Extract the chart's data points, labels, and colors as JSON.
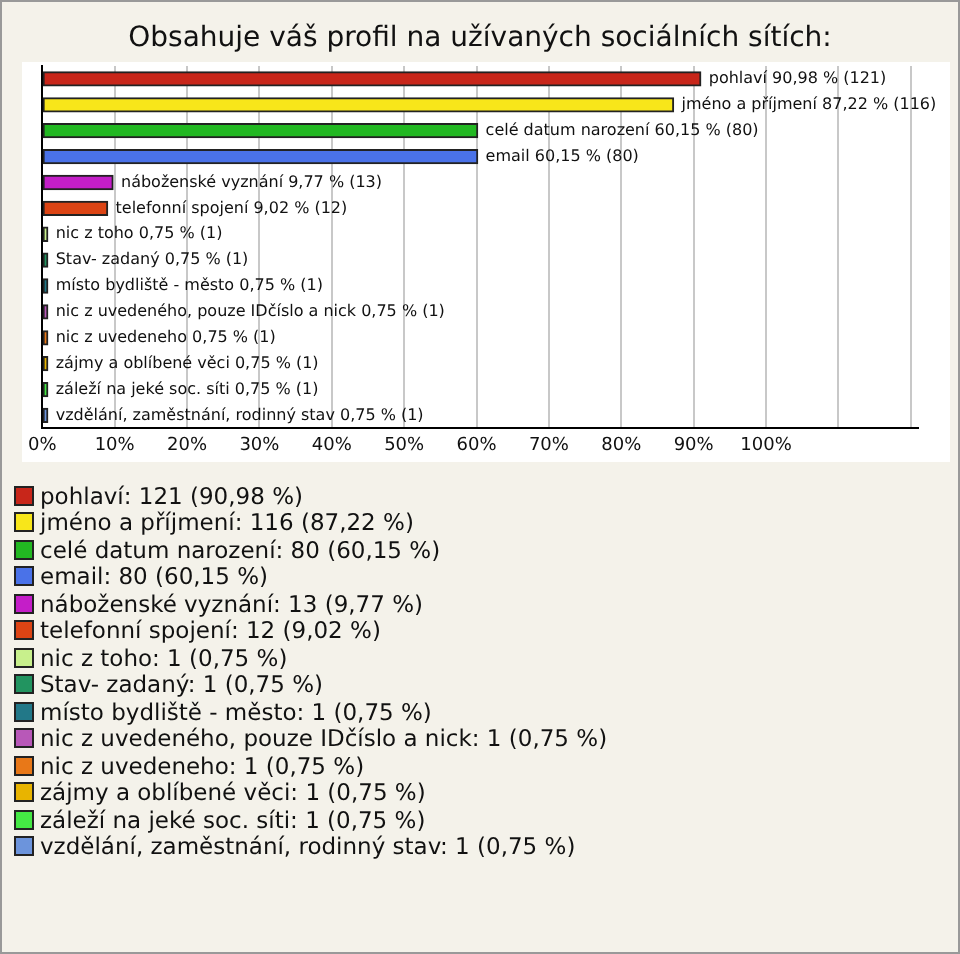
{
  "chart_data": {
    "type": "bar",
    "orientation": "horizontal",
    "stacked": true,
    "title": "Obsahuje váš profil na užívaných sociálních sítích:",
    "categories": [
      null,
      null,
      null,
      null,
      null,
      null,
      null,
      null,
      null,
      null,
      null,
      null,
      null,
      null
    ],
    "series": [
      {
        "name": "pohlaví: 121 (90,98 %)",
        "color": "#c8261a",
        "values": [
          90.98,
          null,
          null,
          null,
          null,
          null,
          null,
          null,
          null,
          null,
          null,
          null,
          null,
          null
        ],
        "value_labels": [
          "pohlaví 90,98 % (121)",
          null,
          null,
          null,
          null,
          null,
          null,
          null,
          null,
          null,
          null,
          null,
          null,
          null
        ]
      },
      {
        "name": "jméno a příjmení: 116 (87,22 %)",
        "color": "#f8e61a",
        "values": [
          null,
          87.22,
          null,
          null,
          null,
          null,
          null,
          null,
          null,
          null,
          null,
          null,
          null,
          null
        ],
        "value_labels": [
          null,
          "jméno a příjmení 87,22 % (116)",
          null,
          null,
          null,
          null,
          null,
          null,
          null,
          null,
          null,
          null,
          null,
          null
        ]
      },
      {
        "name": "celé datum narození: 80 (60,15 %)",
        "color": "#22b822",
        "values": [
          null,
          null,
          60.15,
          null,
          null,
          null,
          null,
          null,
          null,
          null,
          null,
          null,
          null,
          null
        ],
        "value_labels": [
          null,
          null,
          "celé datum narození 60,15 % (80)",
          null,
          null,
          null,
          null,
          null,
          null,
          null,
          null,
          null,
          null,
          null
        ]
      },
      {
        "name": "email: 80 (60,15 %)",
        "color": "#4a72e8",
        "values": [
          null,
          null,
          null,
          60.15,
          null,
          null,
          null,
          null,
          null,
          null,
          null,
          null,
          null,
          null
        ],
        "value_labels": [
          null,
          null,
          null,
          "email 60,15 % (80)",
          null,
          null,
          null,
          null,
          null,
          null,
          null,
          null,
          null,
          null
        ]
      },
      {
        "name": "náboženské vyznání: 13 (9,77 %)",
        "color": "#c41ec8",
        "values": [
          null,
          null,
          null,
          null,
          9.77,
          null,
          null,
          null,
          null,
          null,
          null,
          null,
          null,
          null
        ],
        "value_labels": [
          null,
          null,
          null,
          null,
          "náboženské vyznání 9,77 % (13)",
          null,
          null,
          null,
          null,
          null,
          null,
          null,
          null,
          null
        ]
      },
      {
        "name": "telefonní spojení: 12 (9,02 %)",
        "color": "#dc4414",
        "values": [
          null,
          null,
          null,
          null,
          null,
          9.02,
          null,
          null,
          null,
          null,
          null,
          null,
          null,
          null
        ],
        "value_labels": [
          null,
          null,
          null,
          null,
          null,
          "telefonní spojení 9,02 % (12)",
          null,
          null,
          null,
          null,
          null,
          null,
          null,
          null
        ]
      },
      {
        "name": "nic z toho: 1 (0,75 %)",
        "color": "#c8f08c",
        "values": [
          null,
          null,
          null,
          null,
          null,
          null,
          0.75,
          null,
          null,
          null,
          null,
          null,
          null,
          null
        ],
        "value_labels": [
          null,
          null,
          null,
          null,
          null,
          null,
          "nic z toho 0,75 % (1)",
          null,
          null,
          null,
          null,
          null,
          null,
          null
        ]
      },
      {
        "name": "Stav- zadaný: 1 (0,75 %)",
        "color": "#229460",
        "values": [
          null,
          null,
          null,
          null,
          null,
          null,
          null,
          0.75,
          null,
          null,
          null,
          null,
          null,
          null
        ],
        "value_labels": [
          null,
          null,
          null,
          null,
          null,
          null,
          null,
          "Stav- zadaný 0,75 % (1)",
          null,
          null,
          null,
          null,
          null,
          null
        ]
      },
      {
        "name": "místo bydliště - město: 1 (0,75 %)",
        "color": "#227888",
        "values": [
          null,
          null,
          null,
          null,
          null,
          null,
          null,
          null,
          0.75,
          null,
          null,
          null,
          null,
          null
        ],
        "value_labels": [
          null,
          null,
          null,
          null,
          null,
          null,
          null,
          null,
          "místo bydliště - město 0,75 % (1)",
          null,
          null,
          null,
          null,
          null
        ]
      },
      {
        "name": "nic z uvedeného, pouze IDčíslo a nick: 1 (0,75 %)",
        "color": "#b858b8",
        "values": [
          null,
          null,
          null,
          null,
          null,
          null,
          null,
          null,
          null,
          0.75,
          null,
          null,
          null,
          null
        ],
        "value_labels": [
          null,
          null,
          null,
          null,
          null,
          null,
          null,
          null,
          null,
          "nic z uvedeného, pouze IDčíslo a nick 0,75 % (1)",
          null,
          null,
          null,
          null
        ]
      },
      {
        "name": "nic z uvedeneho: 1 (0,75 %)",
        "color": "#e87818",
        "values": [
          null,
          null,
          null,
          null,
          null,
          null,
          null,
          null,
          null,
          null,
          0.75,
          null,
          null,
          null
        ],
        "value_labels": [
          null,
          null,
          null,
          null,
          null,
          null,
          null,
          null,
          null,
          null,
          "nic z uvedeneho 0,75 % (1)",
          null,
          null,
          null
        ]
      },
      {
        "name": "zájmy a oblíbené věci: 1 (0,75 %)",
        "color": "#e8b400",
        "values": [
          null,
          null,
          null,
          null,
          null,
          null,
          null,
          null,
          null,
          null,
          null,
          0.75,
          null,
          null
        ],
        "value_labels": [
          null,
          null,
          null,
          null,
          null,
          null,
          null,
          null,
          null,
          null,
          null,
          "zájmy a oblíbené věci 0,75 % (1)",
          null,
          null
        ]
      },
      {
        "name": "záleží na jeké soc. síti: 1 (0,75 %)",
        "color": "#44e844",
        "values": [
          null,
          null,
          null,
          null,
          null,
          null,
          null,
          null,
          null,
          null,
          null,
          null,
          0.75,
          null
        ],
        "value_labels": [
          null,
          null,
          null,
          null,
          null,
          null,
          null,
          null,
          null,
          null,
          null,
          null,
          "záleží na jeké soc. síti 0,75 % (1)",
          null
        ]
      },
      {
        "name": "vzdělání, zaměstnání, rodinný stav: 1 (0,75 %)",
        "color": "#6c94dc",
        "values": [
          null,
          null,
          null,
          null,
          null,
          null,
          null,
          null,
          null,
          null,
          null,
          null,
          null,
          0.75
        ],
        "value_labels": [
          null,
          null,
          null,
          null,
          null,
          null,
          null,
          null,
          null,
          null,
          null,
          null,
          null,
          "vzdělání, zaměstnání, rodinný stav 0,75 % (1)"
        ]
      }
    ],
    "xlim": [
      0,
      121
    ],
    "xticks": [
      {
        "value": 0,
        "label": "0%"
      },
      {
        "value": 10,
        "label": "10%"
      },
      {
        "value": 20,
        "label": "20%"
      },
      {
        "value": 30,
        "label": "30%"
      },
      {
        "value": 40,
        "label": "40%"
      },
      {
        "value": 50,
        "label": "50%"
      },
      {
        "value": 60,
        "label": "60%"
      },
      {
        "value": 70,
        "label": "70%"
      },
      {
        "value": 80,
        "label": "80%"
      },
      {
        "value": 90,
        "label": "90%"
      },
      {
        "value": 100,
        "label": "100%"
      },
      {
        "value": 110,
        "label": null
      },
      {
        "value": 120,
        "label": null
      }
    ],
    "grid": "x",
    "tick_labels": "x",
    "legend": "bottom"
  }
}
